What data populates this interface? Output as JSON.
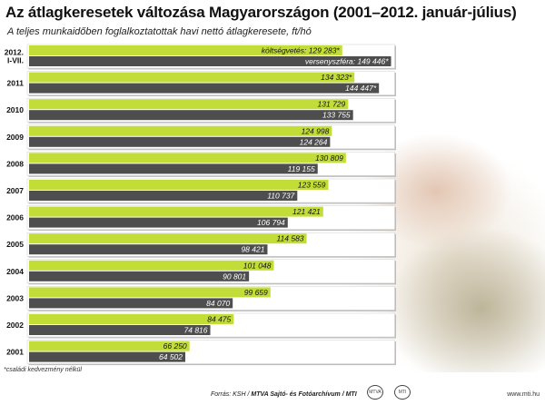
{
  "title": "Az átlagkeresetek változása Magyarországon (2001–2012. január-július)",
  "subtitle": "A teljes munkaidőben foglalkoztatottak havi nettó átlagkeresete, ft/hó",
  "footnote": "*családi kedvezmény nélkül",
  "source_label": "Forrás: KSH /",
  "source_bold": "MTVA Sajtó- és Fotóarchívum / MTI",
  "url": "www.mti.hu",
  "colors": {
    "green": "#c2dd37",
    "dark": "#4e4e4e",
    "frame": "#ffffff"
  },
  "chart_data": {
    "type": "bar",
    "orientation": "horizontal",
    "categories": [
      "2012.\nI-VII.",
      "2011",
      "2010",
      "2009",
      "2008",
      "2007",
      "2006",
      "2005",
      "2004",
      "2003",
      "2002",
      "2001"
    ],
    "series": [
      {
        "name": "költségvetés",
        "color": "#c2dd37",
        "values": [
          129283,
          134323,
          131729,
          124998,
          130809,
          123559,
          121421,
          114583,
          101048,
          99659,
          84475,
          66250
        ],
        "labels": [
          "költségvetés: 129 283*",
          "134 323*",
          "131 729",
          "124 998",
          "130 809",
          "123 559",
          "121 421",
          "114 583",
          "101 048",
          "99 659",
          "84 475",
          "66 250"
        ]
      },
      {
        "name": "versenyszféra",
        "color": "#4e4e4e",
        "values": [
          149446,
          144447,
          133755,
          124264,
          119155,
          110737,
          106794,
          98421,
          90801,
          84070,
          74816,
          64502
        ],
        "labels": [
          "versenyszféra: 149 446*",
          "144 447*",
          "133 755",
          "124 264",
          "119 155",
          "110 737",
          "106 794",
          "98 421",
          "90 801",
          "84 070",
          "74 816",
          "64 502"
        ]
      }
    ],
    "xlim": [
      0,
      150000
    ],
    "grid": false,
    "legend": "none"
  }
}
